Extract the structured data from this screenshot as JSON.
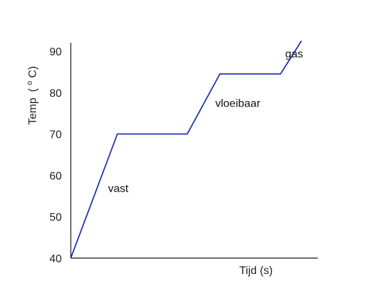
{
  "chart_data": {
    "type": "line",
    "title": "",
    "xlabel": "Tijd (s)",
    "ylabel": "Temp",
    "ylabel_unit": "(oC)",
    "ylabel_unit_open": "(",
    "ylabel_unit_sup": "o",
    "ylabel_unit_close": "C)",
    "ylim": [
      40,
      92
    ],
    "y_ticks": [
      40,
      50,
      60,
      70,
      80,
      90
    ],
    "x_ticks_shown": false,
    "grid": false,
    "series": [
      {
        "color": "#1f2fbf",
        "x": [
          0,
          2,
          5,
          6.4,
          9,
          9.9
        ],
        "y": [
          40,
          70,
          70,
          84.5,
          84.5,
          92.5
        ]
      }
    ],
    "annotations": [
      {
        "text": "vast",
        "x": 1.6,
        "y": 56
      },
      {
        "text": "vloeibaar",
        "x": 6.2,
        "y": 76.5
      },
      {
        "text": "gas",
        "x": 9.2,
        "y": 88.5
      }
    ]
  }
}
